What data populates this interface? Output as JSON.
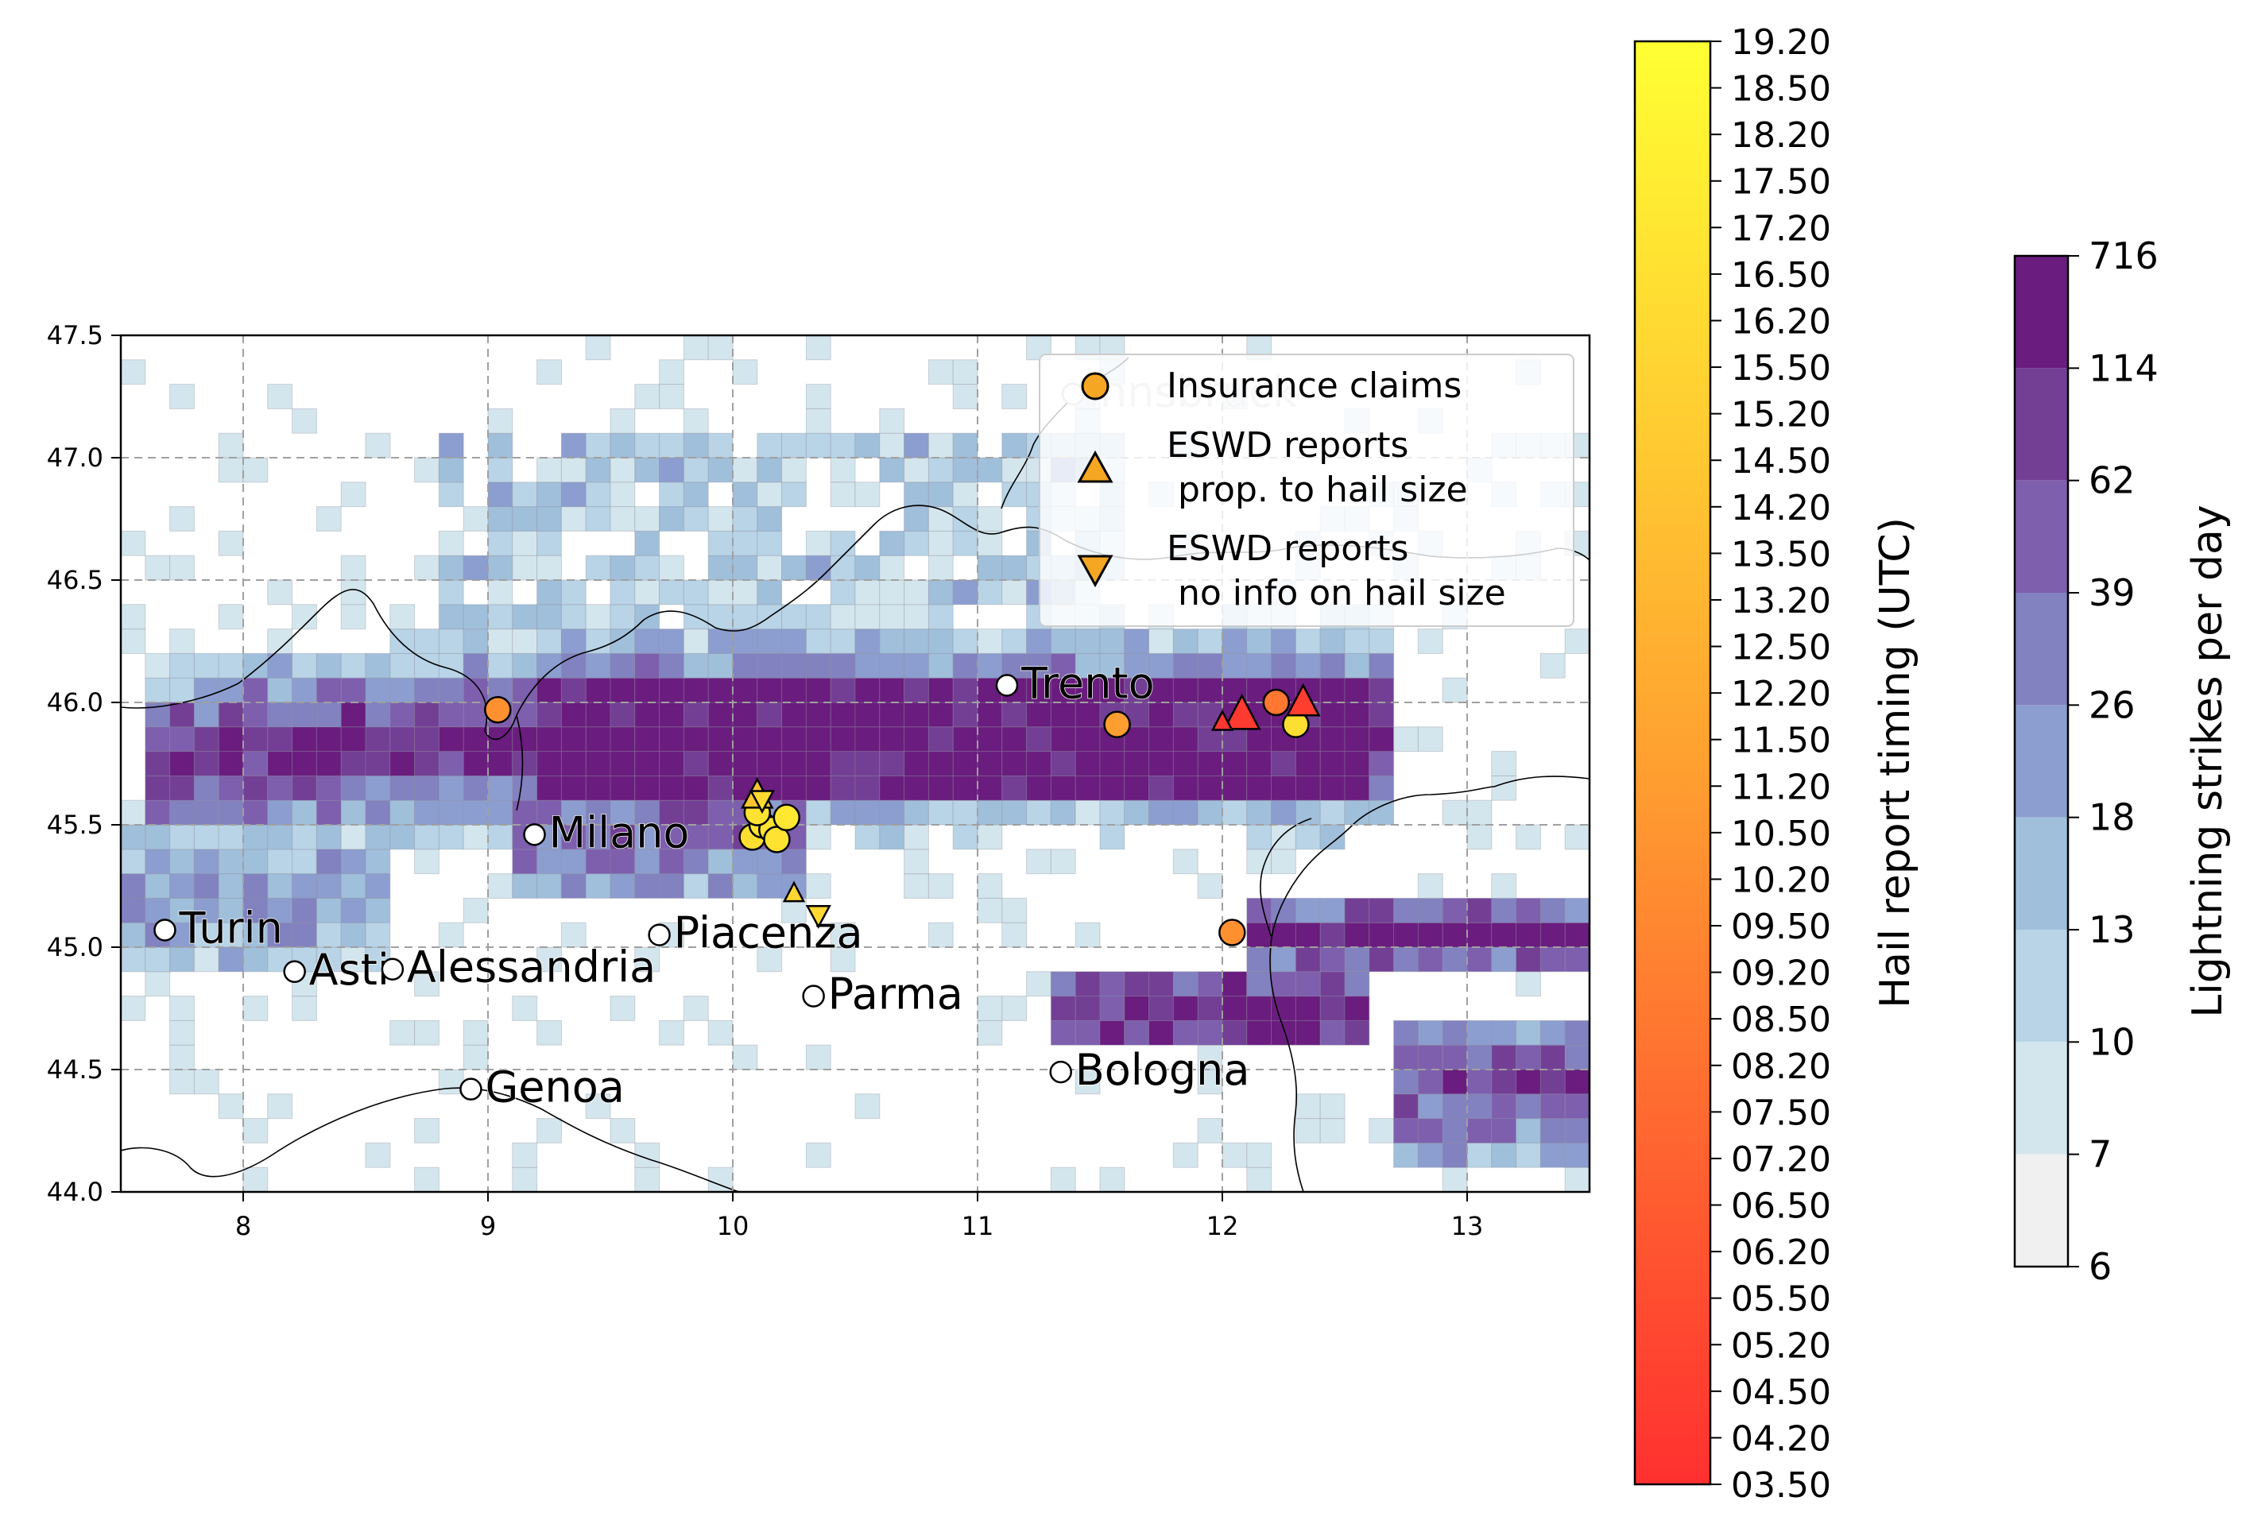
{
  "figure": {
    "map": {
      "lon_range": [
        7.5,
        13.5
      ],
      "lat_range": [
        44.0,
        47.5
      ],
      "lon_ticks": [
        "8",
        "9",
        "10",
        "11",
        "12",
        "13"
      ],
      "lon_tick_values": [
        8,
        9,
        10,
        11,
        12,
        13
      ],
      "lat_ticks": [
        "44.0",
        "44.5",
        "45.0",
        "45.5",
        "46.0",
        "46.5",
        "47.0",
        "47.5"
      ],
      "lat_tick_values": [
        44.0,
        44.5,
        45.0,
        45.5,
        46.0,
        46.5,
        47.0,
        47.5
      ],
      "grid": true,
      "cities": [
        {
          "name": "Turin",
          "lon": 7.68,
          "lat": 45.07
        },
        {
          "name": "Asti",
          "lon": 8.21,
          "lat": 44.9
        },
        {
          "name": "Alessandria",
          "lon": 8.61,
          "lat": 44.91
        },
        {
          "name": "Genoa",
          "lon": 8.93,
          "lat": 44.42
        },
        {
          "name": "Milano",
          "lon": 9.19,
          "lat": 45.46
        },
        {
          "name": "Piacenza",
          "lon": 9.7,
          "lat": 45.05
        },
        {
          "name": "Parma",
          "lon": 10.33,
          "lat": 44.8
        },
        {
          "name": "Trento",
          "lon": 11.12,
          "lat": 46.07
        },
        {
          "name": "Bologna",
          "lon": 11.34,
          "lat": 44.49
        },
        {
          "name": "Innsbruck",
          "lon": 11.39,
          "lat": 47.26
        }
      ]
    },
    "legend": {
      "position": "top-right",
      "entries": [
        {
          "label": "Insurance claims",
          "marker": "circle"
        },
        {
          "label": "ESWD reports\n prop. to hail size",
          "marker": "triangle-up"
        },
        {
          "label": "ESWD reports\n no info on hail size",
          "marker": "triangle-down"
        }
      ]
    },
    "timing_colorbar": {
      "label": "Hail report timing (UTC)",
      "ticks": [
        "03.50",
        "04.20",
        "04.50",
        "05.20",
        "05.50",
        "06.20",
        "06.50",
        "07.20",
        "07.50",
        "08.20",
        "08.50",
        "09.20",
        "09.50",
        "10.20",
        "10.50",
        "11.20",
        "11.50",
        "12.20",
        "12.50",
        "13.20",
        "13.50",
        "14.20",
        "14.50",
        "15.20",
        "15.50",
        "16.20",
        "16.50",
        "17.20",
        "17.50",
        "18.20",
        "18.50",
        "19.20"
      ],
      "colors": {
        "low": "#ff3030",
        "mid": "#ffa030",
        "high": "#ffff33"
      }
    },
    "lightning_colorbar": {
      "label": "Lightning strikes per day",
      "ticks": [
        "6",
        "7",
        "10",
        "13",
        "18",
        "26",
        "39",
        "62",
        "114",
        "716"
      ],
      "colors": [
        "#f0f0f0",
        "#d4e6ed",
        "#b8d4e6",
        "#a0bfdb",
        "#8c9ecf",
        "#8282c0",
        "#7e5fae",
        "#733f95",
        "#6a1d7e"
      ]
    }
  },
  "chart_data": {
    "type": "scatter",
    "xlabel": "",
    "ylabel": "",
    "xlim": [
      7.5,
      13.5
    ],
    "ylim": [
      44.0,
      47.5
    ],
    "series": [
      {
        "name": "Insurance claims",
        "marker": "circle",
        "points": [
          {
            "lon": 9.04,
            "lat": 45.97,
            "time": 10.2
          },
          {
            "lon": 11.57,
            "lat": 45.91,
            "time": 11.2
          },
          {
            "lon": 12.04,
            "lat": 45.06,
            "time": 10.2
          },
          {
            "lon": 12.22,
            "lat": 46.0,
            "time": 8.5
          },
          {
            "lon": 12.3,
            "lat": 45.91,
            "time": 16.5
          },
          {
            "lon": 10.08,
            "lat": 45.45,
            "time": 16.5
          },
          {
            "lon": 10.12,
            "lat": 45.5,
            "time": 16.8
          },
          {
            "lon": 10.16,
            "lat": 45.48,
            "time": 17.0
          },
          {
            "lon": 10.18,
            "lat": 45.44,
            "time": 16.8
          },
          {
            "lon": 10.22,
            "lat": 45.53,
            "time": 17.2
          },
          {
            "lon": 10.1,
            "lat": 45.55,
            "time": 16.8
          }
        ]
      },
      {
        "name": "ESWD reports prop. to hail size",
        "marker": "triangle-up",
        "points": [
          {
            "lon": 10.1,
            "lat": 45.62,
            "time": 14.5,
            "size": 34
          },
          {
            "lon": 10.25,
            "lat": 45.22,
            "time": 15.8,
            "size": 22
          },
          {
            "lon": 12.08,
            "lat": 45.95,
            "time": 4.2,
            "size": 40
          },
          {
            "lon": 12.33,
            "lat": 46.0,
            "time": 4.5,
            "size": 36
          },
          {
            "lon": 12.0,
            "lat": 45.92,
            "time": 4.0,
            "size": 22
          }
        ]
      },
      {
        "name": "ESWD reports no info on hail size",
        "marker": "triangle-down",
        "points": [
          {
            "lon": 10.35,
            "lat": 45.13,
            "time": 16.0
          },
          {
            "lon": 10.12,
            "lat": 45.6,
            "time": 16.2
          }
        ]
      }
    ]
  }
}
